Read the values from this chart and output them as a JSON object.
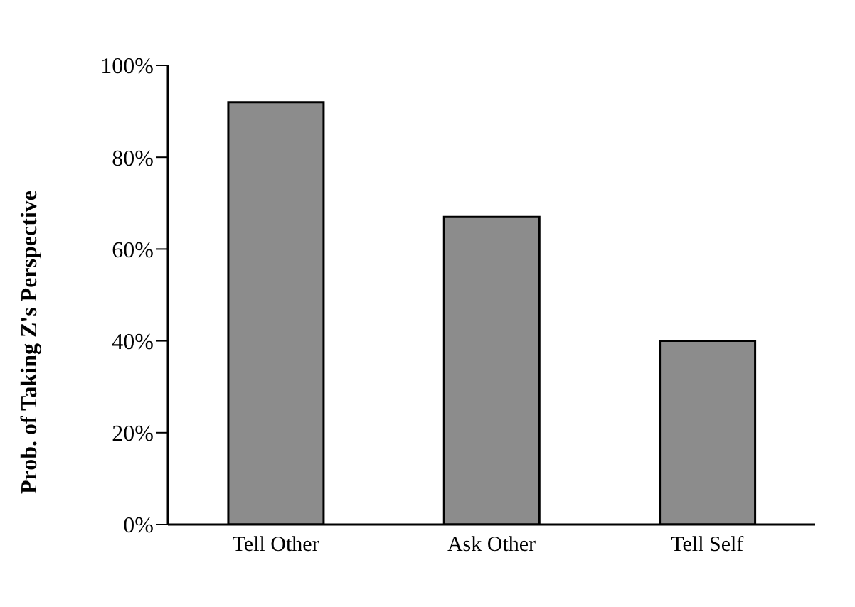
{
  "chart_data": {
    "type": "bar",
    "ylabel": "Prob.  of  Taking  Z's  Perspective",
    "categories": [
      "Tell Other",
      "Ask Other",
      "Tell Self"
    ],
    "values": [
      92,
      67,
      40
    ],
    "color": "#8c8c8c",
    "ylim": [
      0,
      100
    ],
    "yticks": [
      {
        "value": 0,
        "label": "0%"
      },
      {
        "value": 20,
        "label": "20%"
      },
      {
        "value": 40,
        "label": "40%"
      },
      {
        "value": 60,
        "label": "60%"
      },
      {
        "value": 80,
        "label": "80%"
      },
      {
        "value": 100,
        "label": "100%"
      }
    ],
    "grid": false,
    "legend": false
  }
}
